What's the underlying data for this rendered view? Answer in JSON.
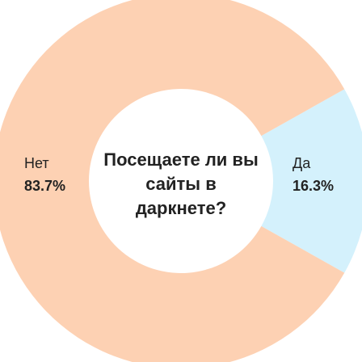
{
  "chart_data": {
    "type": "donut",
    "title": "Посещаете ли вы сайты в даркнете?",
    "categories": [
      "Да",
      "Нет"
    ],
    "values": [
      16.3,
      83.7
    ],
    "value_labels": [
      "16.3%",
      "83.7%"
    ],
    "colors": [
      "#d4f1fc",
      "#fdd1b3"
    ]
  }
}
